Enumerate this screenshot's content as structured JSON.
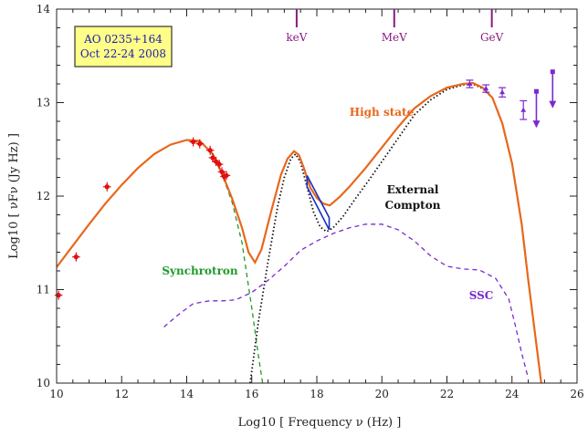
{
  "chart_data": {
    "type": "scatter",
    "xlabel": "Log10 [ Frequency ν (Hz) ]",
    "ylabel": "Log10 [ νFν (Jy Hz) ]",
    "xlim": [
      10,
      26
    ],
    "ylim": [
      10,
      14
    ],
    "x_ticks": [
      "10",
      "12",
      "14",
      "16",
      "18",
      "20",
      "22",
      "24",
      "26"
    ],
    "y_ticks": [
      "10",
      "11",
      "12",
      "13",
      "14"
    ],
    "energy_markers": [
      {
        "label": "keV",
        "x": 17.38
      },
      {
        "label": "MeV",
        "x": 20.38
      },
      {
        "label": "GeV",
        "x": 23.38
      }
    ],
    "info_box": {
      "line1": "AO 0235+164",
      "line2": "Oct 22-24 2008"
    },
    "annotations": {
      "high_state": "High state",
      "external_compton_1": "External",
      "external_compton_2": "Compton",
      "synchrotron": "Synchrotron",
      "ssc": "SSC"
    },
    "colors": {
      "high_state": "#e8671c",
      "synchrotron": "#1f9a2a",
      "ssc": "#7a2ad0",
      "external_compton": "#111111",
      "points_red": "#e01010",
      "points_purple": "#7a2ad0",
      "xray_bowtie": "#1a2fbf",
      "energy": "#8b1a7e"
    },
    "series": [
      {
        "name": "High state",
        "x": [
          10.0,
          10.5,
          11.0,
          11.5,
          12.0,
          12.5,
          13.0,
          13.5,
          14.0,
          14.4,
          14.8,
          15.1,
          15.4,
          15.7,
          15.9,
          16.1,
          16.3,
          16.6,
          16.9,
          17.1,
          17.3,
          17.45,
          17.6,
          17.8,
          18.0,
          18.2,
          18.4,
          18.7,
          19.0,
          19.5,
          20.0,
          20.5,
          21.0,
          21.5,
          22.0,
          22.5,
          22.8,
          23.1,
          23.4,
          23.7,
          24.0,
          24.3,
          24.5,
          24.7,
          24.9,
          25.1
        ],
        "y": [
          11.24,
          11.47,
          11.7,
          11.92,
          12.12,
          12.3,
          12.45,
          12.55,
          12.6,
          12.59,
          12.45,
          12.23,
          11.97,
          11.66,
          11.4,
          11.29,
          11.43,
          11.84,
          12.23,
          12.4,
          12.48,
          12.44,
          12.3,
          12.09,
          11.98,
          11.92,
          11.9,
          11.99,
          12.1,
          12.3,
          12.52,
          12.74,
          12.94,
          13.07,
          13.16,
          13.2,
          13.21,
          13.16,
          13.05,
          12.78,
          12.35,
          11.7,
          11.1,
          10.55,
          10.0,
          9.6
        ]
      },
      {
        "name": "Synchrotron",
        "x": [
          13.5,
          14.0,
          14.4,
          14.8,
          15.1,
          15.4,
          15.7,
          16.0,
          16.2,
          16.4
        ],
        "y": [
          12.55,
          12.6,
          12.59,
          12.45,
          12.22,
          11.93,
          11.5,
          10.8,
          10.3,
          9.85
        ]
      },
      {
        "name": "SSC",
        "x": [
          13.3,
          13.7,
          14.2,
          14.7,
          15.1,
          15.5,
          16.0,
          16.5,
          17.0,
          17.5,
          18.0,
          18.5,
          19.0,
          19.5,
          20.0,
          20.5,
          21.0,
          21.5,
          22.0,
          22.5,
          23.0,
          23.5,
          23.9,
          24.1,
          24.3,
          24.5
        ],
        "y": [
          10.6,
          10.72,
          10.85,
          10.88,
          10.88,
          10.89,
          10.97,
          11.1,
          11.25,
          11.42,
          11.52,
          11.6,
          11.66,
          11.7,
          11.7,
          11.64,
          11.52,
          11.36,
          11.25,
          11.22,
          11.21,
          11.12,
          10.9,
          10.62,
          10.32,
          10.05
        ]
      },
      {
        "name": "External Compton",
        "x": [
          15.95,
          16.2,
          16.5,
          16.8,
          17.0,
          17.2,
          17.35,
          17.5,
          17.7,
          17.9,
          18.1,
          18.3,
          18.5,
          18.8,
          19.2,
          19.6,
          20.0,
          20.5,
          21.0,
          21.5,
          22.0,
          22.5,
          22.8,
          23.1,
          23.4,
          23.7,
          24.0,
          24.3,
          24.5,
          24.7,
          24.9
        ],
        "y": [
          10.0,
          10.65,
          11.3,
          11.9,
          12.2,
          12.4,
          12.45,
          12.36,
          12.1,
          11.83,
          11.67,
          11.62,
          11.66,
          11.78,
          11.98,
          12.17,
          12.37,
          12.62,
          12.87,
          13.03,
          13.14,
          13.19,
          13.2,
          13.15,
          13.05,
          12.78,
          12.35,
          11.7,
          11.1,
          10.55,
          10.0
        ]
      }
    ],
    "points_red": [
      {
        "x": 10.06,
        "y": 10.94,
        "xerr": 0.12
      },
      {
        "x": 10.6,
        "y": 11.35,
        "xerr": 0.12
      },
      {
        "x": 11.55,
        "y": 12.1,
        "xerr": 0.12
      },
      {
        "x": 14.2,
        "y": 12.58,
        "xerr": 0.12
      },
      {
        "x": 14.4,
        "y": 12.56,
        "xerr": 0.12
      },
      {
        "x": 14.72,
        "y": 12.49,
        "xerr": 0.12
      },
      {
        "x": 14.8,
        "y": 12.41,
        "xerr": 0.12
      },
      {
        "x": 14.9,
        "y": 12.37,
        "xerr": 0.12
      },
      {
        "x": 15.0,
        "y": 12.34,
        "xerr": 0.12
      },
      {
        "x": 15.08,
        "y": 12.26,
        "xerr": 0.12
      },
      {
        "x": 15.15,
        "y": 12.21,
        "xerr": 0.12
      },
      {
        "x": 15.22,
        "y": 12.22,
        "xerr": 0.12
      }
    ],
    "points_purple": [
      {
        "x": 22.7,
        "y": 13.2,
        "yerr": 0.04
      },
      {
        "x": 23.2,
        "y": 13.15,
        "yerr": 0.04
      },
      {
        "x": 23.7,
        "y": 13.11,
        "yerr": 0.05
      },
      {
        "x": 24.35,
        "y": 12.92,
        "yerr": 0.1
      }
    ],
    "upper_limits": [
      {
        "x": 24.75,
        "y": 13.12
      },
      {
        "x": 25.25,
        "y": 13.33
      }
    ],
    "xray_bowtie": {
      "x": [
        17.7,
        18.38
      ],
      "upper": [
        12.22,
        11.77
      ],
      "lower": [
        12.1,
        11.64
      ]
    }
  }
}
